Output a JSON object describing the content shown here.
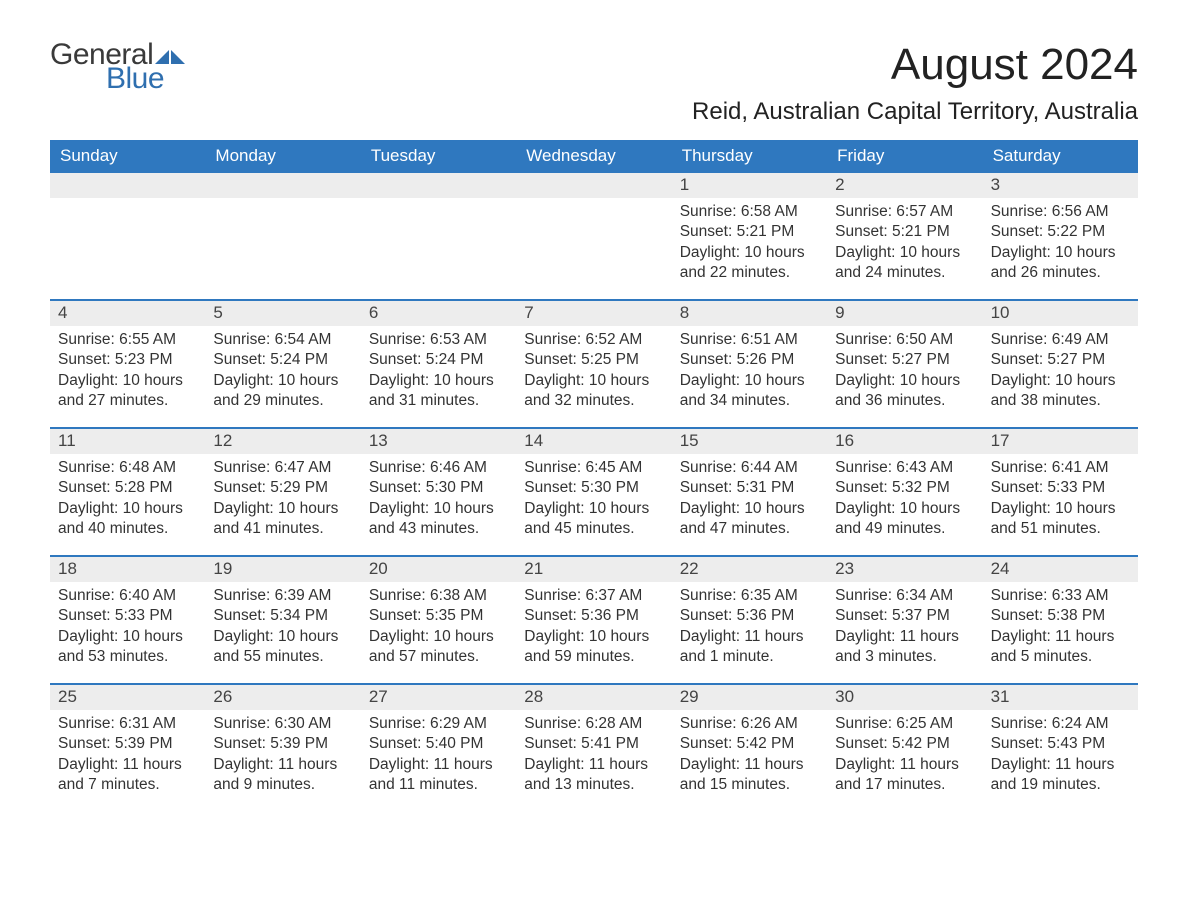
{
  "logo": {
    "text1": "General",
    "text2": "Blue",
    "text_color": "#3a3a3a",
    "accent_color": "#2f6faf"
  },
  "title": "August 2024",
  "subtitle": "Reid, Australian Capital Territory, Australia",
  "colors": {
    "header_bg": "#2f78bf",
    "header_text": "#ffffff",
    "daynum_bg": "#ededed",
    "week_border": "#2f78bf",
    "body_text": "#333333",
    "page_bg": "#ffffff"
  },
  "typography": {
    "title_fontsize": 44,
    "subtitle_fontsize": 24,
    "header_fontsize": 17,
    "daynum_fontsize": 17,
    "body_fontsize": 15.5,
    "font_family": "Arial"
  },
  "day_names": [
    "Sunday",
    "Monday",
    "Tuesday",
    "Wednesday",
    "Thursday",
    "Friday",
    "Saturday"
  ],
  "label_sunrise": "Sunrise:",
  "label_sunset": "Sunset:",
  "label_daylight": "Daylight:",
  "weeks": [
    [
      null,
      null,
      null,
      null,
      {
        "n": "1",
        "sr": "6:58 AM",
        "ss": "5:21 PM",
        "dl": "10 hours and 22 minutes."
      },
      {
        "n": "2",
        "sr": "6:57 AM",
        "ss": "5:21 PM",
        "dl": "10 hours and 24 minutes."
      },
      {
        "n": "3",
        "sr": "6:56 AM",
        "ss": "5:22 PM",
        "dl": "10 hours and 26 minutes."
      }
    ],
    [
      {
        "n": "4",
        "sr": "6:55 AM",
        "ss": "5:23 PM",
        "dl": "10 hours and 27 minutes."
      },
      {
        "n": "5",
        "sr": "6:54 AM",
        "ss": "5:24 PM",
        "dl": "10 hours and 29 minutes."
      },
      {
        "n": "6",
        "sr": "6:53 AM",
        "ss": "5:24 PM",
        "dl": "10 hours and 31 minutes."
      },
      {
        "n": "7",
        "sr": "6:52 AM",
        "ss": "5:25 PM",
        "dl": "10 hours and 32 minutes."
      },
      {
        "n": "8",
        "sr": "6:51 AM",
        "ss": "5:26 PM",
        "dl": "10 hours and 34 minutes."
      },
      {
        "n": "9",
        "sr": "6:50 AM",
        "ss": "5:27 PM",
        "dl": "10 hours and 36 minutes."
      },
      {
        "n": "10",
        "sr": "6:49 AM",
        "ss": "5:27 PM",
        "dl": "10 hours and 38 minutes."
      }
    ],
    [
      {
        "n": "11",
        "sr": "6:48 AM",
        "ss": "5:28 PM",
        "dl": "10 hours and 40 minutes."
      },
      {
        "n": "12",
        "sr": "6:47 AM",
        "ss": "5:29 PM",
        "dl": "10 hours and 41 minutes."
      },
      {
        "n": "13",
        "sr": "6:46 AM",
        "ss": "5:30 PM",
        "dl": "10 hours and 43 minutes."
      },
      {
        "n": "14",
        "sr": "6:45 AM",
        "ss": "5:30 PM",
        "dl": "10 hours and 45 minutes."
      },
      {
        "n": "15",
        "sr": "6:44 AM",
        "ss": "5:31 PM",
        "dl": "10 hours and 47 minutes."
      },
      {
        "n": "16",
        "sr": "6:43 AM",
        "ss": "5:32 PM",
        "dl": "10 hours and 49 minutes."
      },
      {
        "n": "17",
        "sr": "6:41 AM",
        "ss": "5:33 PM",
        "dl": "10 hours and 51 minutes."
      }
    ],
    [
      {
        "n": "18",
        "sr": "6:40 AM",
        "ss": "5:33 PM",
        "dl": "10 hours and 53 minutes."
      },
      {
        "n": "19",
        "sr": "6:39 AM",
        "ss": "5:34 PM",
        "dl": "10 hours and 55 minutes."
      },
      {
        "n": "20",
        "sr": "6:38 AM",
        "ss": "5:35 PM",
        "dl": "10 hours and 57 minutes."
      },
      {
        "n": "21",
        "sr": "6:37 AM",
        "ss": "5:36 PM",
        "dl": "10 hours and 59 minutes."
      },
      {
        "n": "22",
        "sr": "6:35 AM",
        "ss": "5:36 PM",
        "dl": "11 hours and 1 minute."
      },
      {
        "n": "23",
        "sr": "6:34 AM",
        "ss": "5:37 PM",
        "dl": "11 hours and 3 minutes."
      },
      {
        "n": "24",
        "sr": "6:33 AM",
        "ss": "5:38 PM",
        "dl": "11 hours and 5 minutes."
      }
    ],
    [
      {
        "n": "25",
        "sr": "6:31 AM",
        "ss": "5:39 PM",
        "dl": "11 hours and 7 minutes."
      },
      {
        "n": "26",
        "sr": "6:30 AM",
        "ss": "5:39 PM",
        "dl": "11 hours and 9 minutes."
      },
      {
        "n": "27",
        "sr": "6:29 AM",
        "ss": "5:40 PM",
        "dl": "11 hours and 11 minutes."
      },
      {
        "n": "28",
        "sr": "6:28 AM",
        "ss": "5:41 PM",
        "dl": "11 hours and 13 minutes."
      },
      {
        "n": "29",
        "sr": "6:26 AM",
        "ss": "5:42 PM",
        "dl": "11 hours and 15 minutes."
      },
      {
        "n": "30",
        "sr": "6:25 AM",
        "ss": "5:42 PM",
        "dl": "11 hours and 17 minutes."
      },
      {
        "n": "31",
        "sr": "6:24 AM",
        "ss": "5:43 PM",
        "dl": "11 hours and 19 minutes."
      }
    ]
  ]
}
